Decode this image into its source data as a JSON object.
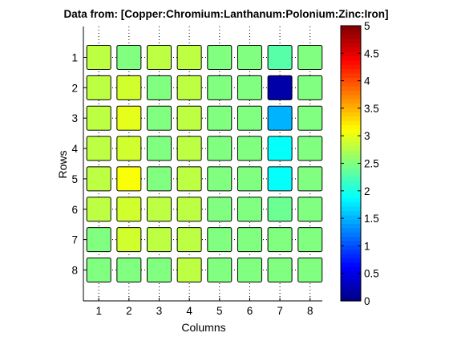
{
  "chart_data": {
    "type": "heatmap",
    "title": "Data from: [Copper:Chromium:Lanthanum:Polonium:Zinc:Iron]",
    "xlabel": "Columns",
    "ylabel": "Rows",
    "x_ticks": [
      "1",
      "2",
      "3",
      "4",
      "5",
      "6",
      "7",
      "8"
    ],
    "y_ticks": [
      "1",
      "2",
      "3",
      "4",
      "5",
      "6",
      "7",
      "8"
    ],
    "colorbar": {
      "range": [
        0,
        5
      ],
      "ticks": [
        "0",
        "0.5",
        "1",
        "1.5",
        "2",
        "2.5",
        "3",
        "3.5",
        "4",
        "4.5",
        "5"
      ],
      "colormap": "jet"
    },
    "values": [
      [
        2.8,
        2.5,
        2.8,
        2.8,
        2.5,
        2.5,
        2.3,
        2.5
      ],
      [
        2.8,
        2.9,
        2.5,
        2.8,
        2.5,
        2.5,
        0.2,
        2.5
      ],
      [
        2.8,
        3.0,
        2.5,
        2.8,
        2.5,
        2.5,
        1.5,
        2.5
      ],
      [
        2.8,
        2.9,
        2.5,
        2.8,
        2.5,
        2.5,
        1.9,
        2.5
      ],
      [
        2.8,
        3.1,
        2.5,
        2.8,
        2.5,
        2.5,
        1.9,
        2.5
      ],
      [
        2.8,
        2.9,
        2.8,
        2.8,
        2.5,
        2.5,
        2.4,
        2.5
      ],
      [
        2.5,
        2.9,
        2.8,
        2.8,
        2.5,
        2.5,
        2.5,
        2.5
      ],
      [
        2.5,
        2.5,
        2.5,
        2.8,
        2.5,
        2.5,
        2.5,
        2.5
      ]
    ],
    "grid": true
  }
}
